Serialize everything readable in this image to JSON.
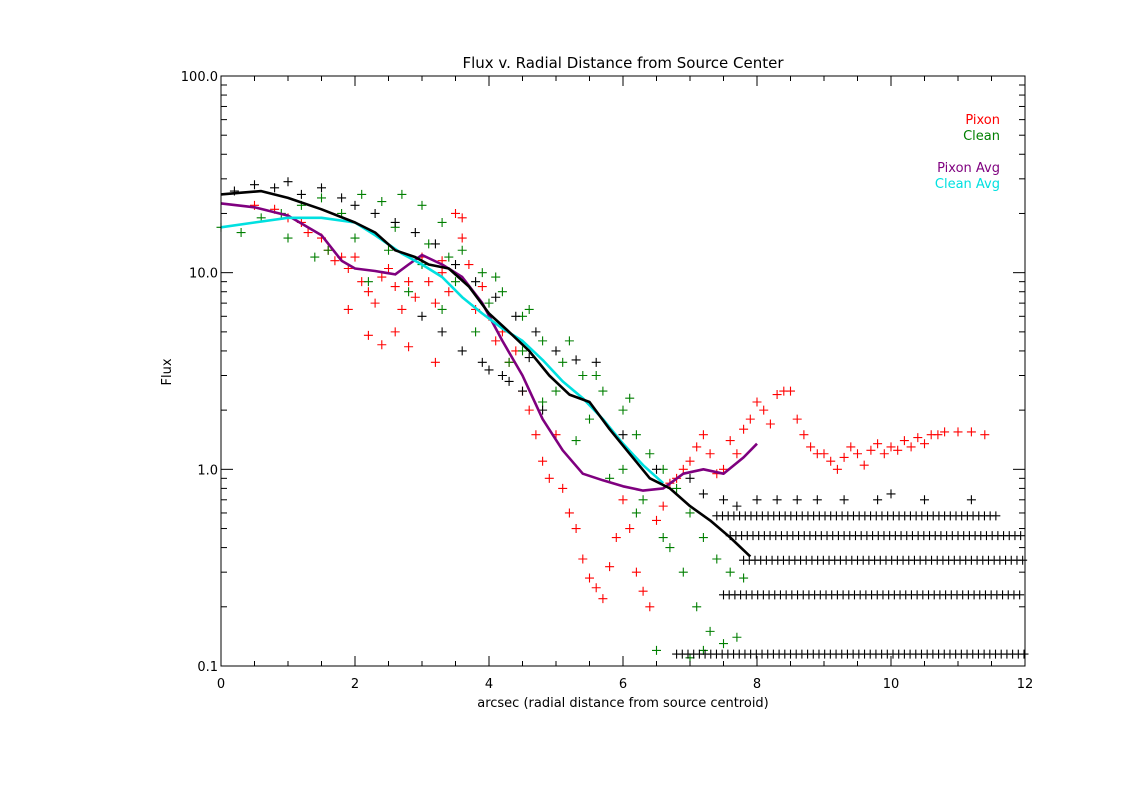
{
  "chart_data": {
    "type": "scatter",
    "title": "Flux v. Radial Distance from Source Center",
    "xlabel": "arcsec (radial distance from source centroid)",
    "ylabel": "Flux",
    "xlim": [
      0,
      12
    ],
    "ylim": [
      0.1,
      100
    ],
    "yscale": "log",
    "grid": false,
    "legend_position": "top-right",
    "x_ticks": [
      {
        "value": 0,
        "label": "0"
      },
      {
        "value": 2,
        "label": "2"
      },
      {
        "value": 4,
        "label": "4"
      },
      {
        "value": 6,
        "label": "6"
      },
      {
        "value": 8,
        "label": "8"
      },
      {
        "value": 10,
        "label": "10"
      },
      {
        "value": 12,
        "label": "12"
      }
    ],
    "y_ticks": [
      {
        "value": 0.1,
        "label": "0.1"
      },
      {
        "value": 1,
        "label": "1.0"
      },
      {
        "value": 10,
        "label": "10.0"
      },
      {
        "value": 100,
        "label": "100.0"
      }
    ],
    "legend": [
      {
        "label": "Pixon",
        "color": "#ff0000"
      },
      {
        "label": "Clean",
        "color": "#007f00"
      },
      {
        "label": "Pixon Avg",
        "color": "#7f007f"
      },
      {
        "label": "Clean Avg",
        "color": "#00e0e0"
      }
    ],
    "series": [
      {
        "name": "Pixon",
        "kind": "scatter",
        "color": "#ff0000",
        "points": [
          [
            0.5,
            22
          ],
          [
            0.8,
            21
          ],
          [
            1.0,
            19
          ],
          [
            1.2,
            18
          ],
          [
            1.3,
            16
          ],
          [
            1.5,
            15
          ],
          [
            1.6,
            13
          ],
          [
            1.7,
            11.5
          ],
          [
            1.8,
            12
          ],
          [
            1.9,
            10.5
          ],
          [
            2.0,
            12
          ],
          [
            2.1,
            9
          ],
          [
            2.2,
            8
          ],
          [
            2.3,
            7
          ],
          [
            2.4,
            9.5
          ],
          [
            2.5,
            10.5
          ],
          [
            2.6,
            8.5
          ],
          [
            2.7,
            6.5
          ],
          [
            2.8,
            9
          ],
          [
            2.9,
            7.5
          ],
          [
            3.0,
            12
          ],
          [
            3.1,
            9
          ],
          [
            3.2,
            7
          ],
          [
            3.3,
            10
          ],
          [
            3.4,
            8
          ],
          [
            3.5,
            20
          ],
          [
            3.6,
            15
          ],
          [
            3.7,
            11
          ],
          [
            3.8,
            6.5
          ],
          [
            3.9,
            8.5
          ],
          [
            4.0,
            6
          ],
          [
            4.1,
            4.5
          ],
          [
            4.2,
            5
          ],
          [
            4.3,
            3.5
          ],
          [
            4.4,
            4
          ],
          [
            4.5,
            2.5
          ],
          [
            4.6,
            2
          ],
          [
            4.7,
            1.5
          ],
          [
            4.8,
            1.1
          ],
          [
            4.9,
            0.9
          ],
          [
            5.0,
            1.5
          ],
          [
            5.1,
            0.8
          ],
          [
            5.2,
            0.6
          ],
          [
            5.3,
            0.5
          ],
          [
            5.4,
            0.35
          ],
          [
            5.5,
            0.28
          ],
          [
            5.6,
            0.25
          ],
          [
            5.7,
            0.22
          ],
          [
            5.8,
            0.32
          ],
          [
            5.9,
            0.45
          ],
          [
            6.0,
            0.7
          ],
          [
            6.1,
            0.5
          ],
          [
            6.2,
            0.3
          ],
          [
            6.3,
            0.24
          ],
          [
            6.4,
            0.2
          ],
          [
            6.5,
            0.55
          ],
          [
            6.6,
            0.65
          ],
          [
            6.7,
            0.85
          ],
          [
            6.8,
            0.9
          ],
          [
            6.9,
            1.0
          ],
          [
            7.0,
            1.1
          ],
          [
            7.1,
            1.3
          ],
          [
            7.2,
            1.5
          ],
          [
            7.3,
            1.2
          ],
          [
            7.4,
            0.95
          ],
          [
            7.5,
            1.0
          ],
          [
            7.6,
            1.4
          ],
          [
            7.7,
            1.2
          ],
          [
            7.8,
            1.6
          ],
          [
            7.9,
            1.8
          ],
          [
            8.0,
            2.2
          ],
          [
            8.1,
            2.0
          ],
          [
            8.2,
            1.7
          ],
          [
            8.3,
            2.4
          ],
          [
            8.4,
            2.5
          ],
          [
            8.5,
            2.5
          ],
          [
            8.6,
            1.8
          ],
          [
            8.7,
            1.5
          ],
          [
            8.8,
            1.3
          ],
          [
            8.9,
            1.2
          ],
          [
            9.0,
            1.2
          ],
          [
            9.1,
            1.1
          ],
          [
            9.2,
            1.0
          ],
          [
            9.3,
            1.15
          ],
          [
            9.4,
            1.3
          ],
          [
            9.5,
            1.2
          ],
          [
            9.6,
            1.05
          ],
          [
            9.7,
            1.25
          ],
          [
            9.8,
            1.35
          ],
          [
            9.9,
            1.2
          ],
          [
            10.0,
            1.3
          ],
          [
            10.1,
            1.25
          ],
          [
            10.2,
            1.4
          ],
          [
            10.3,
            1.3
          ],
          [
            10.4,
            1.45
          ],
          [
            10.5,
            1.35
          ],
          [
            10.6,
            1.5
          ],
          [
            10.7,
            1.5
          ],
          [
            10.8,
            1.55
          ],
          [
            11.0,
            1.55
          ],
          [
            11.2,
            1.55
          ],
          [
            11.4,
            1.5
          ],
          [
            3.2,
            3.5
          ],
          [
            2.8,
            4.2
          ],
          [
            2.4,
            4.3
          ],
          [
            2.2,
            4.8
          ],
          [
            1.9,
            6.5
          ],
          [
            2.6,
            5
          ],
          [
            3.6,
            19
          ],
          [
            3.3,
            11.5
          ]
        ]
      },
      {
        "name": "Clean",
        "kind": "scatter",
        "color": "#007f00",
        "points": [
          [
            0.0,
            17
          ],
          [
            0.3,
            16
          ],
          [
            0.6,
            19
          ],
          [
            0.9,
            20
          ],
          [
            1.2,
            22
          ],
          [
            1.5,
            24
          ],
          [
            1.8,
            20
          ],
          [
            2.1,
            25
          ],
          [
            2.4,
            23
          ],
          [
            2.7,
            25
          ],
          [
            3.0,
            22
          ],
          [
            3.3,
            18
          ],
          [
            3.6,
            13
          ],
          [
            3.9,
            10
          ],
          [
            4.2,
            8
          ],
          [
            4.5,
            6
          ],
          [
            4.8,
            4.5
          ],
          [
            5.1,
            3.5
          ],
          [
            5.4,
            3
          ],
          [
            5.7,
            2.5
          ],
          [
            6.0,
            2
          ],
          [
            6.2,
            1.5
          ],
          [
            6.4,
            1.2
          ],
          [
            6.6,
            1.0
          ],
          [
            6.8,
            0.8
          ],
          [
            7.0,
            0.6
          ],
          [
            7.2,
            0.45
          ],
          [
            7.4,
            0.35
          ],
          [
            7.6,
            0.3
          ],
          [
            7.8,
            0.28
          ],
          [
            1.6,
            13
          ],
          [
            2.0,
            15
          ],
          [
            2.5,
            13
          ],
          [
            3.0,
            11
          ],
          [
            3.5,
            9
          ],
          [
            4.0,
            7
          ],
          [
            4.5,
            4
          ],
          [
            5.0,
            2.5
          ],
          [
            5.5,
            1.8
          ],
          [
            6.0,
            1.0
          ],
          [
            6.3,
            0.7
          ],
          [
            6.6,
            0.45
          ],
          [
            6.9,
            0.3
          ],
          [
            7.1,
            0.2
          ],
          [
            7.3,
            0.15
          ],
          [
            7.5,
            0.13
          ],
          [
            6.5,
            0.12
          ],
          [
            7.0,
            0.11
          ],
          [
            7.7,
            0.14
          ],
          [
            7.2,
            0.12
          ],
          [
            2.2,
            9
          ],
          [
            2.8,
            8
          ],
          [
            3.3,
            6.5
          ],
          [
            3.8,
            5
          ],
          [
            4.3,
            3.5
          ],
          [
            4.8,
            2.2
          ],
          [
            5.3,
            1.4
          ],
          [
            5.8,
            0.9
          ],
          [
            6.2,
            0.6
          ],
          [
            6.7,
            0.4
          ],
          [
            1.0,
            15
          ],
          [
            1.4,
            12
          ],
          [
            2.6,
            17
          ],
          [
            3.1,
            14
          ],
          [
            3.4,
            12
          ],
          [
            4.1,
            9.5
          ],
          [
            4.6,
            6.5
          ],
          [
            5.2,
            4.5
          ],
          [
            5.6,
            3
          ],
          [
            6.1,
            2.3
          ]
        ]
      },
      {
        "name": "Black markers",
        "kind": "scatter",
        "color": "#000000",
        "points": [
          [
            0.2,
            26
          ],
          [
            0.5,
            28
          ],
          [
            0.8,
            27
          ],
          [
            1.0,
            29
          ],
          [
            1.2,
            25
          ],
          [
            1.5,
            27
          ],
          [
            1.8,
            24
          ],
          [
            2.0,
            22
          ],
          [
            2.3,
            20
          ],
          [
            2.6,
            18
          ],
          [
            2.9,
            16
          ],
          [
            3.2,
            14
          ],
          [
            3.5,
            11
          ],
          [
            3.8,
            9
          ],
          [
            4.1,
            7.5
          ],
          [
            4.4,
            6
          ],
          [
            4.7,
            5
          ],
          [
            5.0,
            4
          ],
          [
            5.3,
            3.6
          ],
          [
            5.6,
            3.5
          ],
          [
            3.0,
            6
          ],
          [
            3.3,
            5
          ],
          [
            3.6,
            4
          ],
          [
            3.9,
            3.5
          ],
          [
            4.2,
            3
          ],
          [
            4.5,
            2.5
          ],
          [
            4.8,
            2
          ],
          [
            4.3,
            2.8
          ],
          [
            4.0,
            3.2
          ],
          [
            4.6,
            3.7
          ],
          [
            6.0,
            1.5
          ],
          [
            6.5,
            1.0
          ],
          [
            7.0,
            0.9
          ],
          [
            7.2,
            0.75
          ],
          [
            7.5,
            0.7
          ],
          [
            7.7,
            0.65
          ],
          [
            8.0,
            0.7
          ],
          [
            8.3,
            0.7
          ],
          [
            8.6,
            0.7
          ],
          [
            8.9,
            0.7
          ],
          [
            9.3,
            0.7
          ],
          [
            9.8,
            0.7
          ],
          [
            10.0,
            0.75
          ],
          [
            10.5,
            0.7
          ],
          [
            11.2,
            0.7
          ]
        ]
      },
      {
        "name": "Black bands",
        "kind": "band",
        "color": "#000000",
        "bands": [
          {
            "y": 0.58,
            "from": 7.4,
            "to": 11.6
          },
          {
            "y": 0.46,
            "from": 7.6,
            "to": 12.0
          },
          {
            "y": 0.345,
            "from": 7.8,
            "to": 12.0
          },
          {
            "y": 0.23,
            "from": 7.5,
            "to": 12.0
          },
          {
            "y": 0.115,
            "from": 6.8,
            "to": 12.0
          }
        ]
      },
      {
        "name": "Pixon Avg",
        "kind": "line",
        "color": "#7f007f",
        "points": [
          [
            0.0,
            22.5
          ],
          [
            0.5,
            21.5
          ],
          [
            1.0,
            19.5
          ],
          [
            1.5,
            15.5
          ],
          [
            1.8,
            11.5
          ],
          [
            2.0,
            10.5
          ],
          [
            2.3,
            10.2
          ],
          [
            2.6,
            9.8
          ],
          [
            2.8,
            11.0
          ],
          [
            3.0,
            12.3
          ],
          [
            3.3,
            11.0
          ],
          [
            3.6,
            9.5
          ],
          [
            3.9,
            7.0
          ],
          [
            4.2,
            4.5
          ],
          [
            4.5,
            3.0
          ],
          [
            4.8,
            1.8
          ],
          [
            5.1,
            1.25
          ],
          [
            5.4,
            0.95
          ],
          [
            5.7,
            0.88
          ],
          [
            6.0,
            0.82
          ],
          [
            6.3,
            0.78
          ],
          [
            6.6,
            0.8
          ],
          [
            6.9,
            0.95
          ],
          [
            7.2,
            1.0
          ],
          [
            7.5,
            0.95
          ],
          [
            7.8,
            1.15
          ],
          [
            8.0,
            1.35
          ]
        ]
      },
      {
        "name": "Clean Avg",
        "kind": "line",
        "color": "#00e0e0",
        "points": [
          [
            0.0,
            17
          ],
          [
            0.5,
            18
          ],
          [
            1.0,
            19
          ],
          [
            1.5,
            19
          ],
          [
            2.0,
            18
          ],
          [
            2.3,
            15.5
          ],
          [
            2.7,
            12.5
          ],
          [
            3.0,
            11
          ],
          [
            3.3,
            9.5
          ],
          [
            3.6,
            7.5
          ],
          [
            3.9,
            6.2
          ],
          [
            4.2,
            5.2
          ],
          [
            4.5,
            4.5
          ],
          [
            4.8,
            3.6
          ],
          [
            5.1,
            2.8
          ],
          [
            5.4,
            2.3
          ],
          [
            5.7,
            1.8
          ],
          [
            6.0,
            1.35
          ],
          [
            6.3,
            1.05
          ],
          [
            6.6,
            0.85
          ]
        ]
      },
      {
        "name": "Black line",
        "kind": "line",
        "color": "#000000",
        "points": [
          [
            0.0,
            25
          ],
          [
            0.3,
            25.5
          ],
          [
            0.6,
            26
          ],
          [
            1.0,
            24
          ],
          [
            1.5,
            21
          ],
          [
            2.0,
            18
          ],
          [
            2.3,
            16
          ],
          [
            2.6,
            13
          ],
          [
            2.9,
            12
          ],
          [
            3.1,
            11
          ],
          [
            3.4,
            10.5
          ],
          [
            3.7,
            8.5
          ],
          [
            4.0,
            6.2
          ],
          [
            4.3,
            5.0
          ],
          [
            4.6,
            4.0
          ],
          [
            4.9,
            3.0
          ],
          [
            5.2,
            2.4
          ],
          [
            5.5,
            2.2
          ],
          [
            5.8,
            1.6
          ],
          [
            6.1,
            1.2
          ],
          [
            6.4,
            0.9
          ],
          [
            6.7,
            0.8
          ],
          [
            7.0,
            0.65
          ],
          [
            7.3,
            0.55
          ],
          [
            7.6,
            0.45
          ],
          [
            7.9,
            0.36
          ]
        ]
      }
    ]
  }
}
